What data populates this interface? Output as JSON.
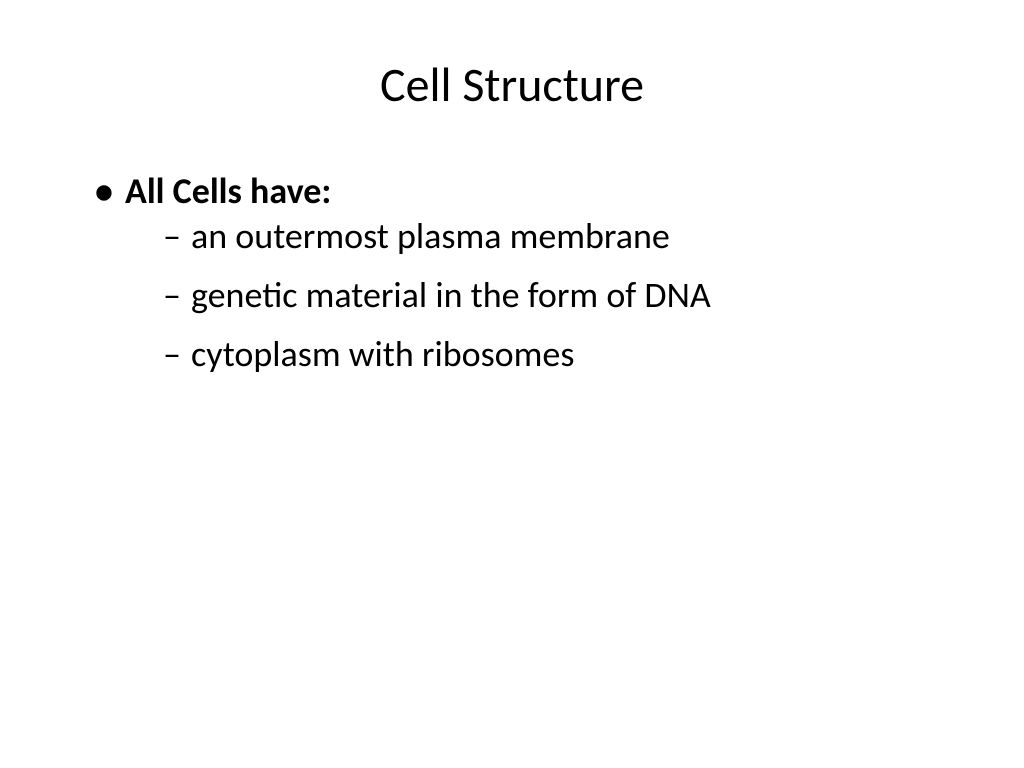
{
  "slide": {
    "title": "Cell Structure",
    "background_color": "#ffffff",
    "text_color": "#000000",
    "title_fontsize": 48,
    "body_fontsize": 36,
    "font_family": "Calibri",
    "bullets": {
      "level1": [
        {
          "text": "All Cells have:",
          "bold": true,
          "children": [
            "an outermost plasma membrane",
            "genetic material in the form of DNA",
            "cytoplasm with ribosomes"
          ]
        }
      ]
    }
  }
}
